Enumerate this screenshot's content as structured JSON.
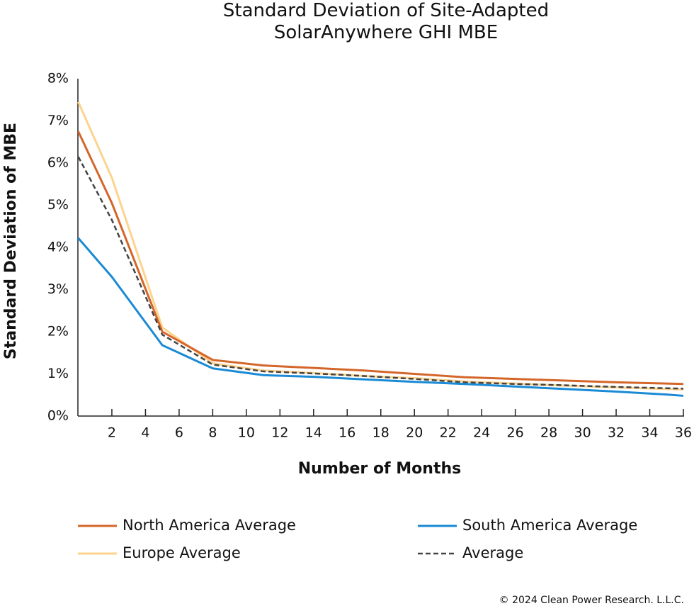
{
  "chart_data": {
    "type": "line",
    "title": "Standard Deviation of Site-Adapted SolarAnywhere GHI MBE",
    "x_label": "Number of Months",
    "y_label": "Standard Deviation of MBE",
    "footer": "© 2024 Clean Power Research. L.L.C.",
    "x": [
      0,
      2,
      5,
      8,
      11,
      14,
      17,
      20,
      23,
      26,
      29,
      32,
      35,
      36
    ],
    "series": [
      {
        "name": "North America Average",
        "color": "#d4662a",
        "dashed": false,
        "values": [
          6.75,
          5.05,
          2.0,
          1.33,
          1.2,
          1.14,
          1.08,
          1.0,
          0.92,
          0.88,
          0.84,
          0.8,
          0.77,
          0.76
        ]
      },
      {
        "name": "South America Average",
        "color": "#1a8ad4",
        "dashed": false,
        "values": [
          4.22,
          3.3,
          1.68,
          1.13,
          0.97,
          0.93,
          0.87,
          0.81,
          0.76,
          0.7,
          0.64,
          0.58,
          0.51,
          0.48
        ]
      },
      {
        "name": "Europe Average",
        "color": "#fdd38d",
        "dashed": false,
        "values": [
          7.45,
          5.65,
          2.1,
          1.25,
          1.08,
          1.02,
          0.95,
          0.9,
          0.82,
          0.77,
          0.72,
          0.68,
          0.64,
          0.63
        ]
      },
      {
        "name": "Average",
        "color": "#444444",
        "dashed": true,
        "values": [
          6.15,
          4.65,
          1.93,
          1.22,
          1.06,
          1.01,
          0.95,
          0.88,
          0.8,
          0.76,
          0.73,
          0.69,
          0.66,
          0.65
        ]
      }
    ],
    "xlim": [
      0,
      36
    ],
    "xticks": [
      2,
      4,
      6,
      8,
      10,
      12,
      14,
      16,
      18,
      20,
      22,
      24,
      26,
      28,
      30,
      32,
      34,
      36
    ],
    "ylim": [
      0,
      8
    ],
    "yticks": [
      {
        "value": 0,
        "label": "0%"
      },
      {
        "value": 1,
        "label": "1%"
      },
      {
        "value": 2,
        "label": "2%"
      },
      {
        "value": 3,
        "label": "3%"
      },
      {
        "value": 4,
        "label": "4%"
      },
      {
        "value": 5,
        "label": "5%"
      },
      {
        "value": 6,
        "label": "6%"
      },
      {
        "value": 7,
        "label": "7%"
      },
      {
        "value": 8,
        "label": "8%"
      }
    ],
    "grid": false
  }
}
